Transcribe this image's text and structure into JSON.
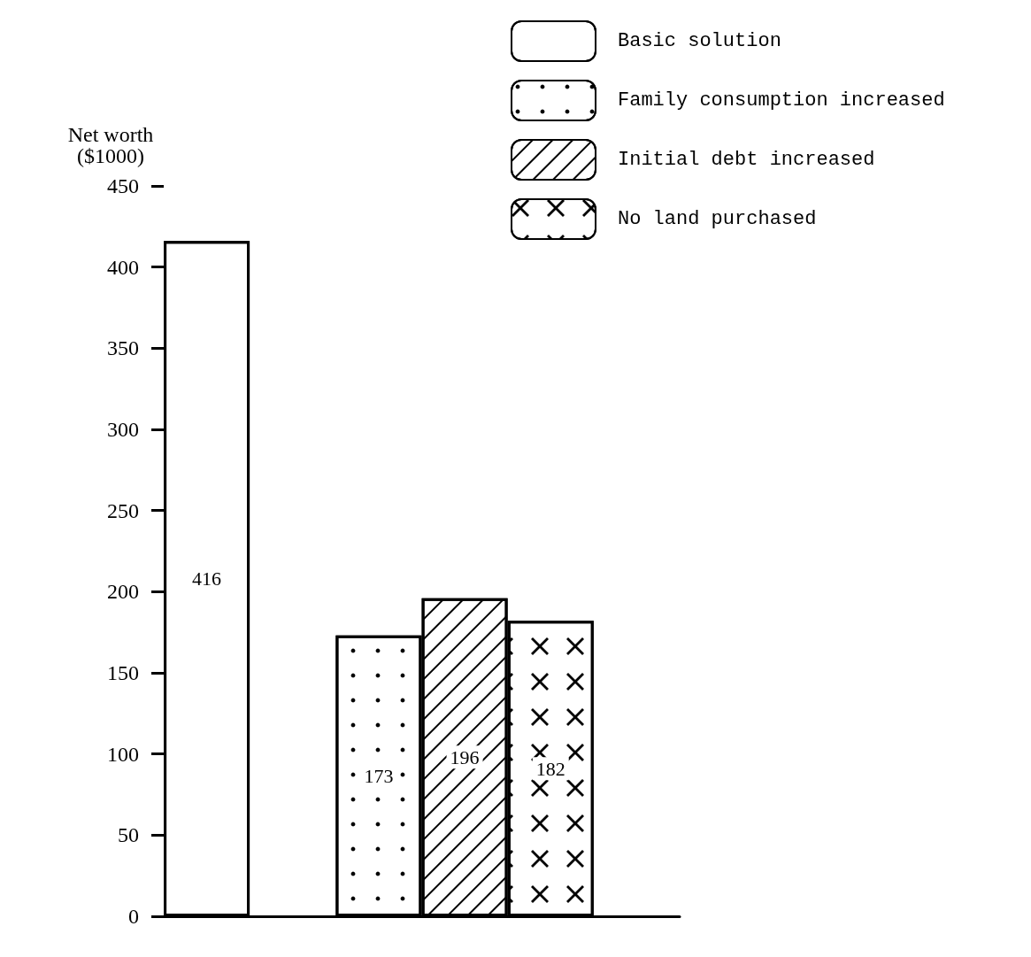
{
  "chart_data": {
    "type": "bar",
    "ylabel": "Net worth\n($1000)",
    "categories": [
      null,
      null,
      null,
      null,
      null,
      null
    ],
    "series": [
      {
        "name": "Basic solution",
        "color": "#ffffff",
        "values": [
          416,
          null,
          null,
          null,
          null,
          null
        ]
      },
      {
        "name": "Family consumption increased",
        "color": "#ffffff",
        "values": [
          null,
          null,
          173,
          null,
          null,
          null
        ]
      },
      {
        "name": "Initial debt increased",
        "color": "#ffffff",
        "values": [
          null,
          null,
          null,
          196,
          null,
          null
        ]
      },
      {
        "name": "No land purchased",
        "color": "#ffffff",
        "values": [
          null,
          null,
          null,
          null,
          182,
          null
        ]
      }
    ],
    "ylim": [
      0,
      450
    ],
    "yticks": [
      0,
      50,
      100,
      150,
      200,
      250,
      300,
      350,
      400,
      450
    ],
    "data_labels": true,
    "grid": false,
    "legend": "top right"
  }
}
